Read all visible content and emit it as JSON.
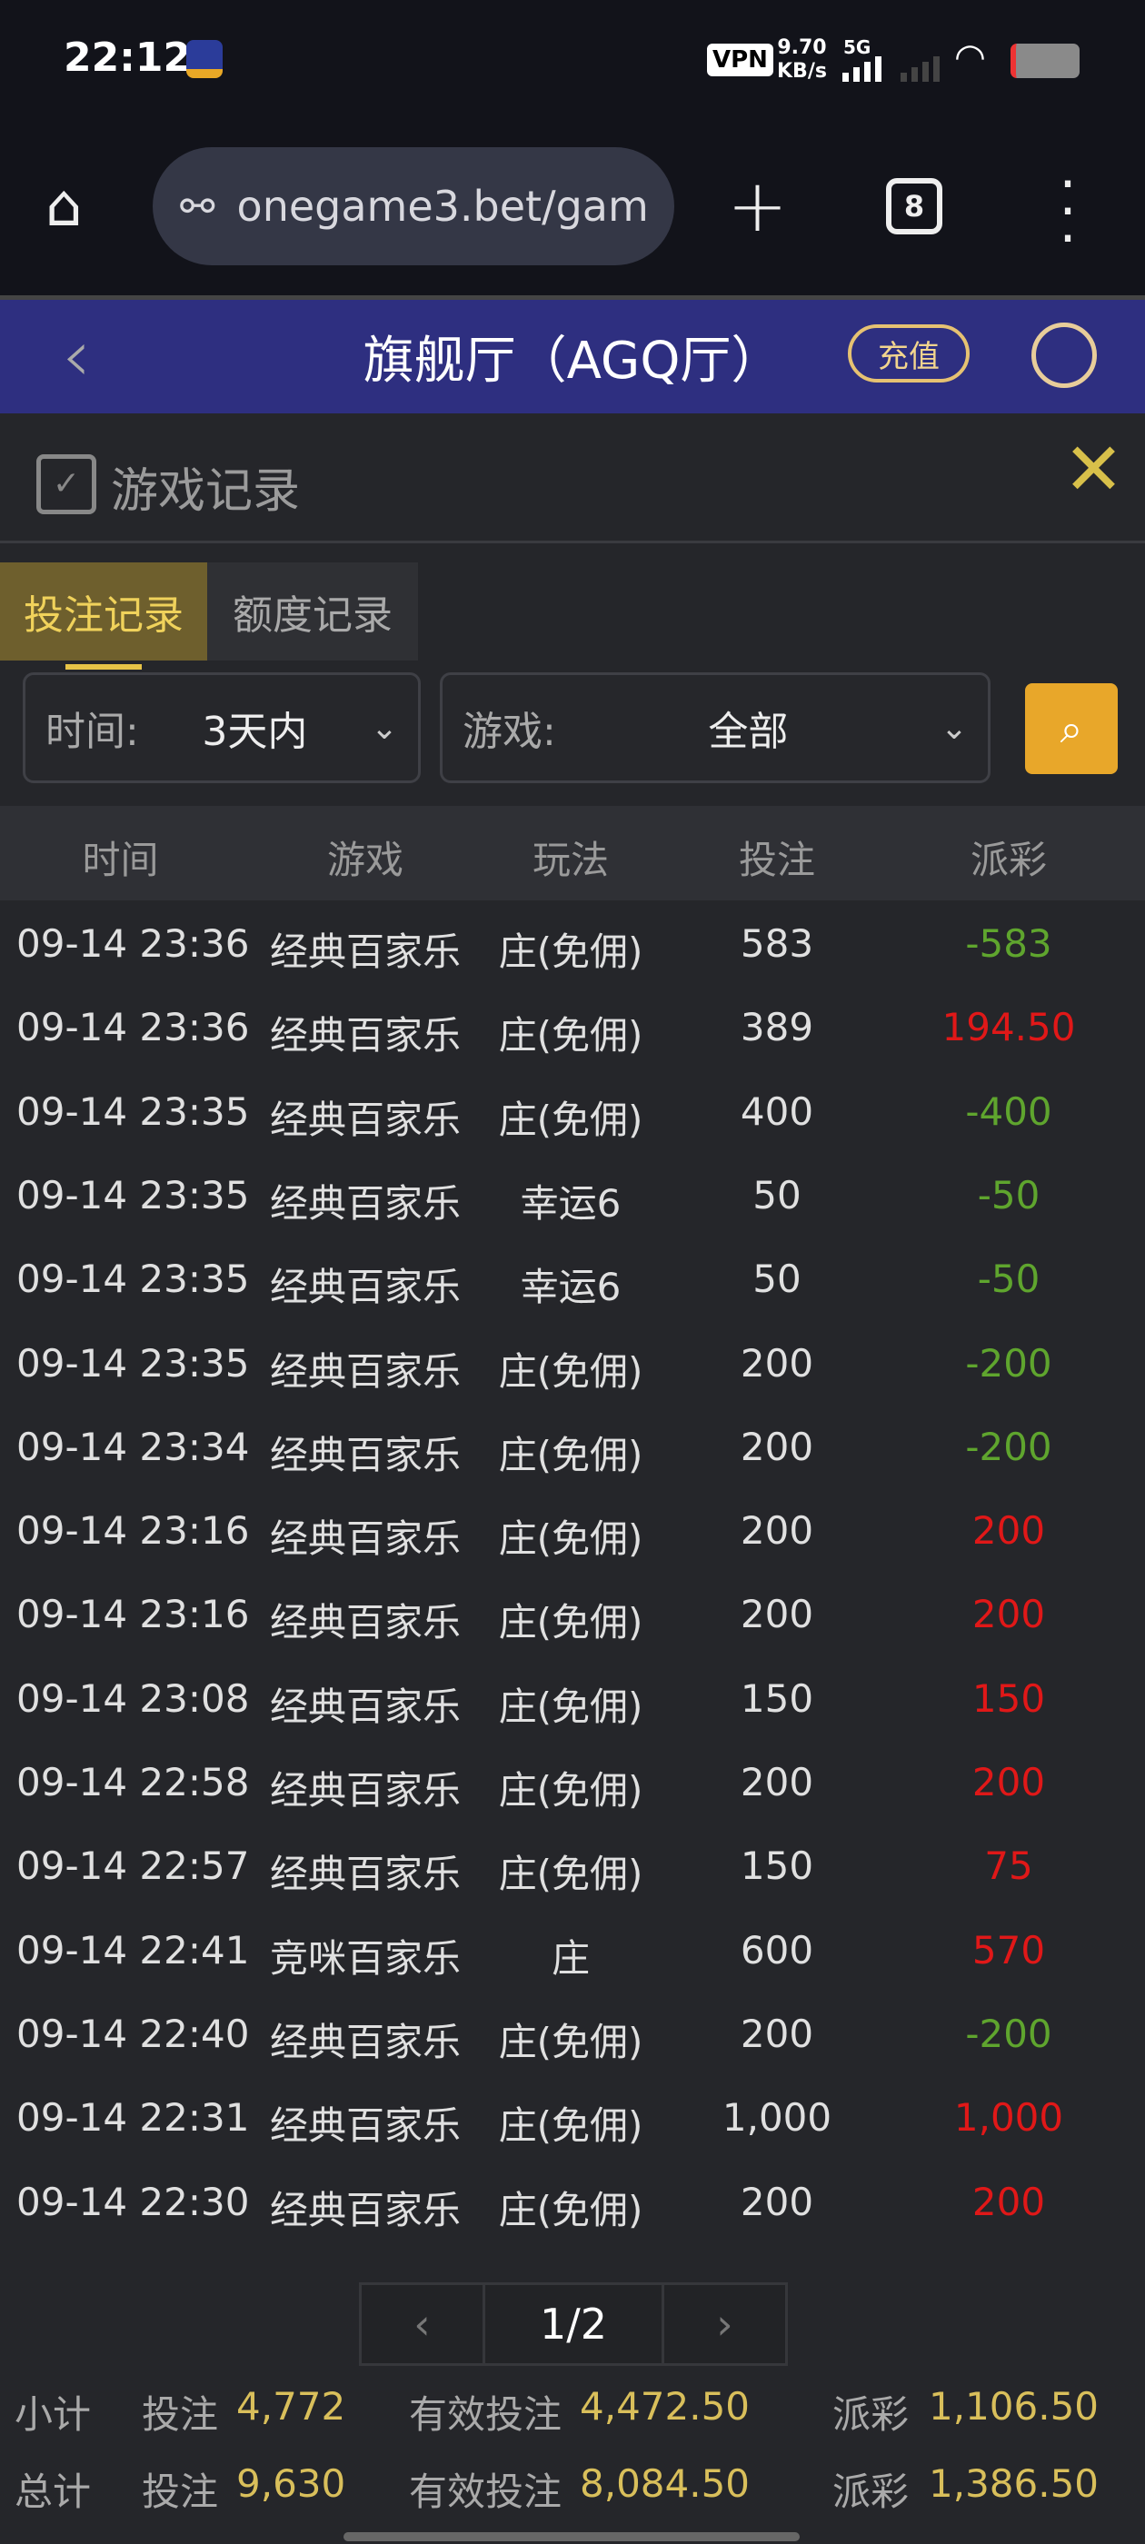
{
  "status_bar": {
    "time": "22:12",
    "vpn": "VPN",
    "speed_value": "9.70",
    "speed_unit": "KB/s",
    "network": "5G"
  },
  "browser": {
    "url": "onegame3.bet/gam",
    "tab_count": "8"
  },
  "header": {
    "title": "旗舰厅（AGQ厅）",
    "recharge": "充值"
  },
  "panel": {
    "title": "游戏记录"
  },
  "tabs": [
    {
      "label": "投注记录",
      "active": true
    },
    {
      "label": "额度记录",
      "active": false
    }
  ],
  "filters": {
    "time_label": "时间:",
    "time_value": "3天内",
    "game_label": "游戏:",
    "game_value": "全部"
  },
  "colors": {
    "positive": "#e01818",
    "negative": "#5fa52e",
    "accent": "#e8a72a"
  },
  "table": {
    "columns": [
      "时间",
      "游戏",
      "玩法",
      "投注",
      "派彩"
    ],
    "rows": [
      [
        "09-14 23:36",
        "经典百家乐",
        "庄(免佣)",
        "583",
        "-583"
      ],
      [
        "09-14 23:36",
        "经典百家乐",
        "庄(免佣)",
        "389",
        "194.50"
      ],
      [
        "09-14 23:35",
        "经典百家乐",
        "庄(免佣)",
        "400",
        "-400"
      ],
      [
        "09-14 23:35",
        "经典百家乐",
        "幸运6",
        "50",
        "-50"
      ],
      [
        "09-14 23:35",
        "经典百家乐",
        "幸运6",
        "50",
        "-50"
      ],
      [
        "09-14 23:35",
        "经典百家乐",
        "庄(免佣)",
        "200",
        "-200"
      ],
      [
        "09-14 23:34",
        "经典百家乐",
        "庄(免佣)",
        "200",
        "-200"
      ],
      [
        "09-14 23:16",
        "经典百家乐",
        "庄(免佣)",
        "200",
        "200"
      ],
      [
        "09-14 23:16",
        "经典百家乐",
        "庄(免佣)",
        "200",
        "200"
      ],
      [
        "09-14 23:08",
        "经典百家乐",
        "庄(免佣)",
        "150",
        "150"
      ],
      [
        "09-14 22:58",
        "经典百家乐",
        "庄(免佣)",
        "200",
        "200"
      ],
      [
        "09-14 22:57",
        "经典百家乐",
        "庄(免佣)",
        "150",
        "75"
      ],
      [
        "09-14 22:41",
        "竞咪百家乐",
        "庄",
        "600",
        "570"
      ],
      [
        "09-14 22:40",
        "经典百家乐",
        "庄(免佣)",
        "200",
        "-200"
      ],
      [
        "09-14 22:31",
        "经典百家乐",
        "庄(免佣)",
        "1,000",
        "1,000"
      ],
      [
        "09-14 22:30",
        "经典百家乐",
        "庄(免佣)",
        "200",
        "200"
      ]
    ]
  },
  "pagination": {
    "page": "1/2"
  },
  "summary": [
    {
      "label": "小计",
      "bet_label": "投注",
      "bet": "4,772",
      "valid_label": "有效投注",
      "valid": "4,472.50",
      "payout_label": "派彩",
      "payout": "1,106.50"
    },
    {
      "label": "总计",
      "bet_label": "投注",
      "bet": "9,630",
      "valid_label": "有效投注",
      "valid": "8,084.50",
      "payout_label": "派彩",
      "payout": "1,386.50"
    }
  ]
}
